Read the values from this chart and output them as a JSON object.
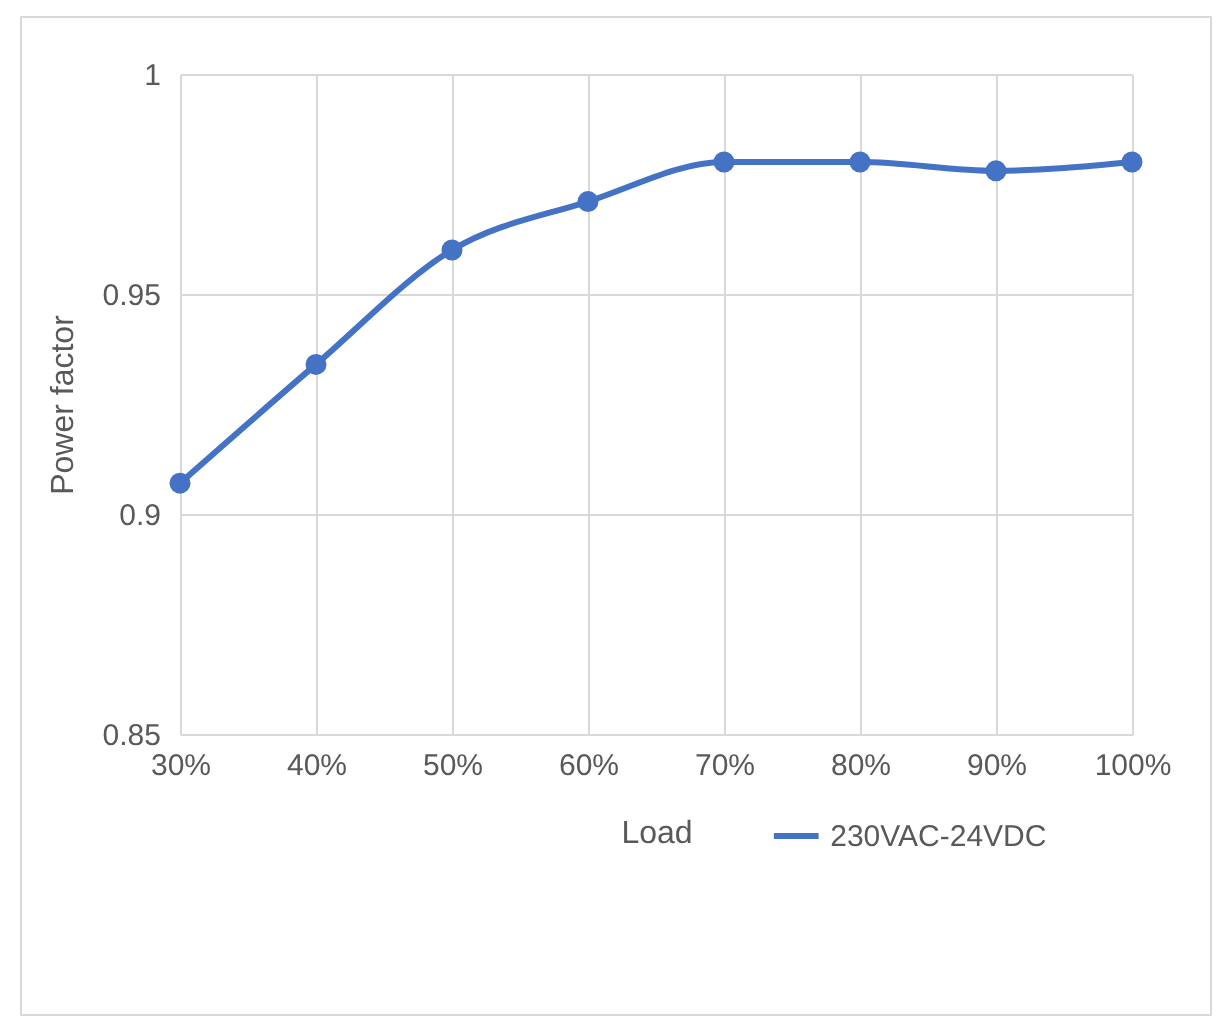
{
  "chart_data": {
    "type": "line",
    "xlabel": "Load",
    "ylabel": "Power factor",
    "categories": [
      "30%",
      "40%",
      "50%",
      "60%",
      "70%",
      "80%",
      "90%",
      "100%"
    ],
    "series": [
      {
        "name": "230VAC-24VDC",
        "color": "#4472c4",
        "values": [
          0.907,
          0.934,
          0.96,
          0.971,
          0.98,
          0.98,
          0.978,
          0.98
        ]
      }
    ],
    "ylim": [
      0.85,
      1
    ],
    "yticks": [
      0.85,
      0.9,
      0.95,
      1
    ],
    "grid": true,
    "legend": "bottom",
    "marker": "circle"
  }
}
